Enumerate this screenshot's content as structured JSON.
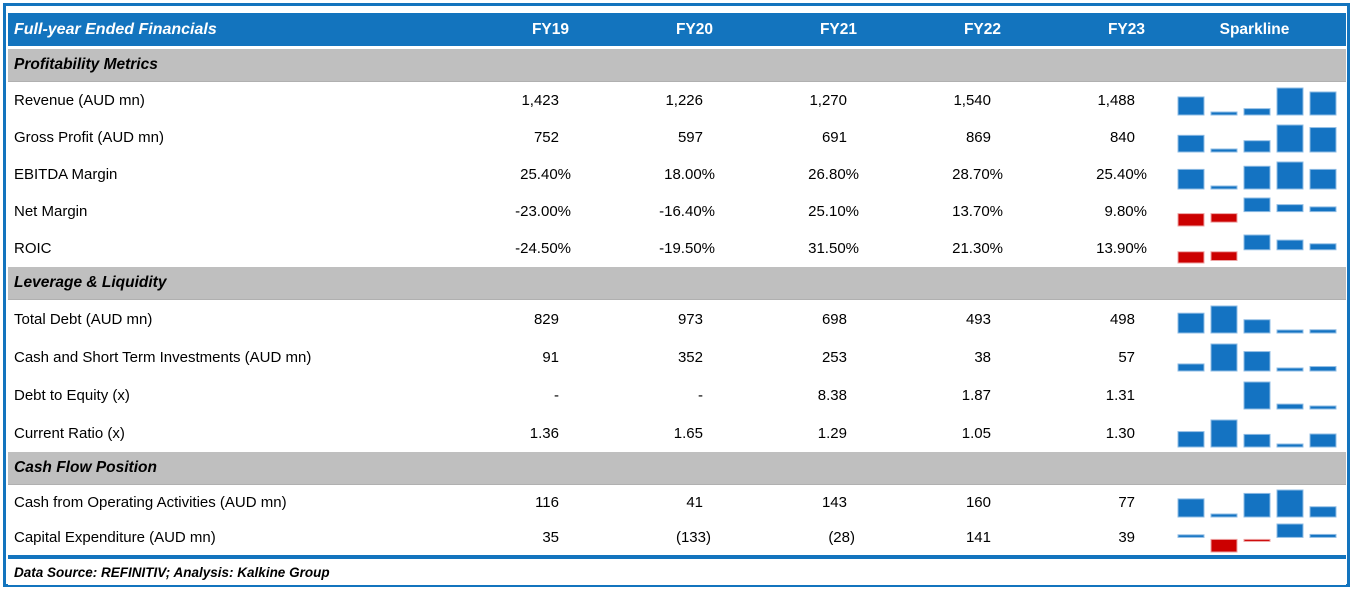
{
  "chart_data": {
    "type": "table",
    "title": "Full-year Ended Financials",
    "columns": [
      "FY19",
      "FY20",
      "FY21",
      "FY22",
      "FY23",
      "Sparkline"
    ],
    "sparkline_type": "bar",
    "sections": [
      {
        "title": "Profitability Metrics",
        "rows": [
          {
            "label": "Revenue (AUD mn)",
            "display": [
              "1,423",
              "1,226",
              "1,270",
              "1,540",
              "1,488"
            ],
            "values": [
              1423,
              1226,
              1270,
              1540,
              1488
            ]
          },
          {
            "label": "Gross Profit (AUD mn)",
            "display": [
              "752",
              "597",
              "691",
              "869",
              "840"
            ],
            "values": [
              752,
              597,
              691,
              869,
              840
            ]
          },
          {
            "label": "EBITDA Margin",
            "display": [
              "25.40%",
              "18.00%",
              "26.80%",
              "28.70%",
              "25.40%"
            ],
            "values": [
              25.4,
              18.0,
              26.8,
              28.7,
              25.4
            ]
          },
          {
            "label": "Net Margin",
            "display": [
              "-23.00%",
              "-16.40%",
              "25.10%",
              "13.70%",
              "9.80%"
            ],
            "values": [
              -23.0,
              -16.4,
              25.1,
              13.7,
              9.8
            ]
          },
          {
            "label": "ROIC",
            "display": [
              "-24.50%",
              "-19.50%",
              "31.50%",
              "21.30%",
              "13.90%"
            ],
            "values": [
              -24.5,
              -19.5,
              31.5,
              21.3,
              13.9
            ]
          }
        ]
      },
      {
        "title": "Leverage & Liquidity",
        "rows": [
          {
            "label": "Total Debt (AUD mn)",
            "display": [
              "829",
              "973",
              "698",
              "493",
              "498"
            ],
            "values": [
              829,
              973,
              698,
              493,
              498
            ]
          },
          {
            "label": "Cash and Short Term Investments (AUD mn)",
            "display": [
              "91",
              "352",
              "253",
              "38",
              "57"
            ],
            "values": [
              91,
              352,
              253,
              38,
              57
            ]
          },
          {
            "label": "Debt to Equity (x)",
            "display": [
              "-",
              "-",
              "8.38",
              "1.87",
              "1.31"
            ],
            "values": [
              null,
              null,
              8.38,
              1.87,
              1.31
            ]
          },
          {
            "label": "Current Ratio (x)",
            "display": [
              "1.36",
              "1.65",
              "1.29",
              "1.05",
              "1.30"
            ],
            "values": [
              1.36,
              1.65,
              1.29,
              1.05,
              1.3
            ]
          }
        ]
      },
      {
        "title": "Cash Flow Position",
        "rows": [
          {
            "label": "Cash from Operating Activities (AUD mn)",
            "display": [
              "116",
              "41",
              "143",
              "160",
              "77"
            ],
            "values": [
              116,
              41,
              143,
              160,
              77
            ]
          },
          {
            "label": "Capital Expenditure (AUD mn)",
            "display": [
              "35",
              "(133)",
              "(28)",
              "141",
              "39"
            ],
            "values": [
              35,
              -133,
              -28,
              141,
              39
            ]
          }
        ]
      }
    ]
  },
  "footer": {
    "text": "Data Source: REFINITIV; Analysis: Kalkine Group"
  },
  "colors": {
    "header_blue": "#1374BE",
    "bar_blue": "#1473C2",
    "negative_red": "#CC0000",
    "section_gray": "#BFBFBF"
  }
}
